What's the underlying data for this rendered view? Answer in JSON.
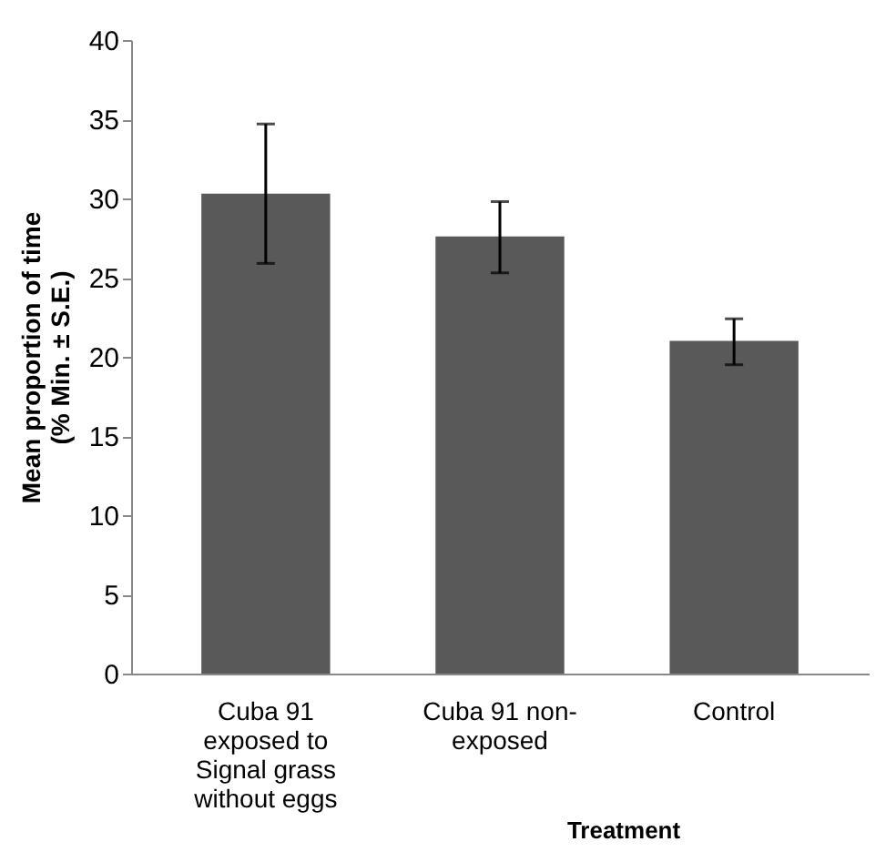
{
  "chart_data": {
    "type": "bar",
    "categories": [
      "Cuba 91 exposed to Signal grass without eggs",
      "Cuba 91 non-exposed",
      "Control"
    ],
    "values": [
      30.3,
      27.6,
      21.0
    ],
    "errors": [
      [
        25.9,
        34.7
      ],
      [
        25.3,
        29.8
      ],
      [
        19.5,
        22.4
      ]
    ],
    "color": "#595959",
    "ylim": [
      0,
      40
    ],
    "yticks": [
      0,
      5,
      10,
      15,
      20,
      25,
      30,
      35,
      40
    ],
    "grid": false,
    "xlabel": "Treatment",
    "ylabel": "Mean proportion of time (% Min. ± S.E.)"
  }
}
